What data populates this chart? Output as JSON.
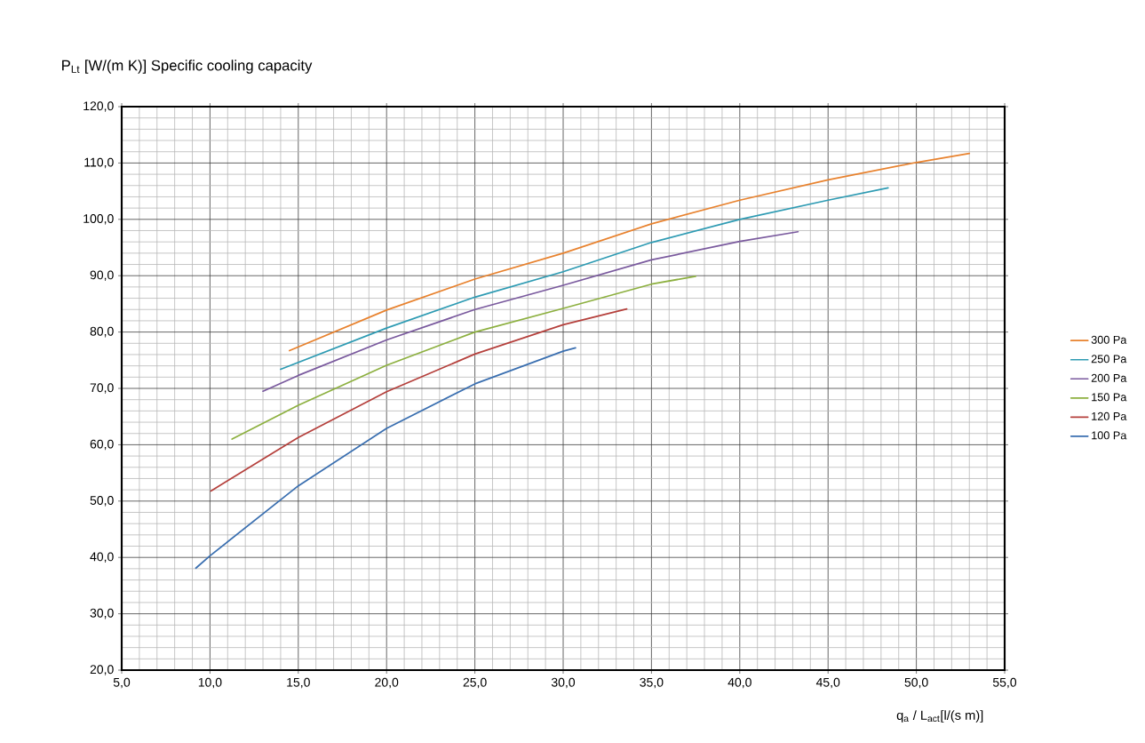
{
  "chart_data": {
    "type": "line",
    "ylabel": "P$_{Lt}$ [W/(m K)] Specific cooling capacity",
    "xlabel": "q$_{a}$ / L$_{act}$[l/(s m)]",
    "xlim": [
      5,
      55
    ],
    "ylim": [
      20,
      120
    ],
    "xticks": [
      {
        "value": 5,
        "label": "5,0"
      },
      {
        "value": 10,
        "label": "10,0"
      },
      {
        "value": 15,
        "label": "15,0"
      },
      {
        "value": 20,
        "label": "20,0"
      },
      {
        "value": 25,
        "label": "25,0"
      },
      {
        "value": 30,
        "label": "30,0"
      },
      {
        "value": 35,
        "label": "35,0"
      },
      {
        "value": 40,
        "label": "40,0"
      },
      {
        "value": 45,
        "label": "45,0"
      },
      {
        "value": 50,
        "label": "50,0"
      },
      {
        "value": 55,
        "label": "55,0"
      }
    ],
    "yticks": [
      {
        "value": 20,
        "label": "20,0"
      },
      {
        "value": 30,
        "label": "30,0"
      },
      {
        "value": 40,
        "label": "40,0"
      },
      {
        "value": 50,
        "label": "50,0"
      },
      {
        "value": 60,
        "label": "60,0"
      },
      {
        "value": 70,
        "label": "70,0"
      },
      {
        "value": 80,
        "label": "80,0"
      },
      {
        "value": 90,
        "label": "90,0"
      },
      {
        "value": 100,
        "label": "100,0"
      },
      {
        "value": 110,
        "label": "110,0"
      },
      {
        "value": 120,
        "label": "120,0"
      }
    ],
    "grid": true,
    "legend": "right",
    "marker": "none",
    "line_style": "solid",
    "series": [
      {
        "name": "300 Pa",
        "color": "#e8822e",
        "x": [
          14.5,
          20,
          25,
          30,
          35,
          40,
          45,
          50,
          53.0
        ],
        "values": [
          76.7,
          83.9,
          89.4,
          94.0,
          99.2,
          103.4,
          107.0,
          110.1,
          111.7
        ]
      },
      {
        "name": "250 Pa",
        "color": "#2e9bb3",
        "x": [
          14.0,
          20,
          25,
          30,
          35,
          40,
          45,
          48.4
        ],
        "values": [
          73.4,
          80.7,
          86.2,
          90.7,
          95.9,
          100.0,
          103.4,
          105.6
        ]
      },
      {
        "name": "200 Pa",
        "color": "#7a5a9e",
        "x": [
          13.0,
          15,
          20,
          25,
          30,
          35,
          40,
          43.3
        ],
        "values": [
          69.5,
          72.3,
          78.6,
          84.0,
          88.3,
          92.8,
          96.1,
          97.8
        ]
      },
      {
        "name": "150 Pa",
        "color": "#8db040",
        "x": [
          11.25,
          15,
          20,
          25,
          30,
          35,
          37.5
        ],
        "values": [
          61.0,
          67.0,
          74.1,
          80.0,
          84.2,
          88.5,
          89.9
        ]
      },
      {
        "name": "120 Pa",
        "color": "#b5403c",
        "x": [
          10.05,
          15,
          20,
          25,
          30,
          33.6
        ],
        "values": [
          51.8,
          61.3,
          69.4,
          76.1,
          81.3,
          84.1
        ]
      },
      {
        "name": "100 Pa",
        "color": "#3a6fb0",
        "x": [
          9.2,
          10,
          15,
          20,
          25,
          30,
          30.7
        ],
        "values": [
          38.1,
          40.3,
          52.7,
          62.9,
          70.8,
          76.6,
          77.2
        ]
      }
    ]
  }
}
